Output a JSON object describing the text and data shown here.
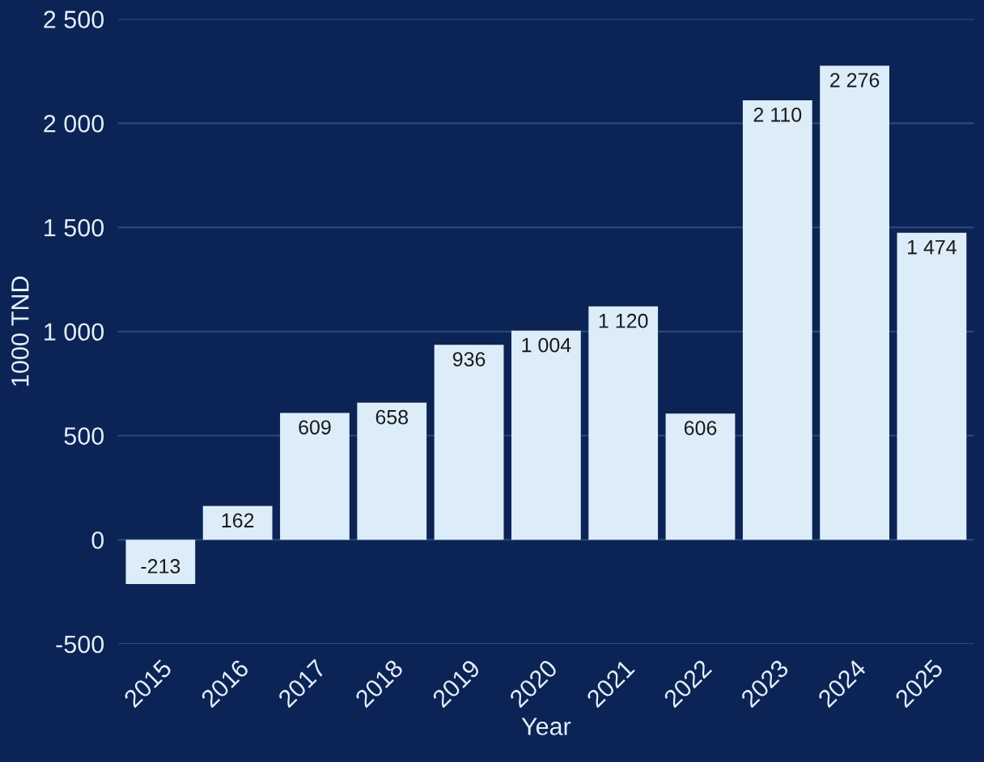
{
  "chart_data": {
    "type": "bar",
    "xlabel": "Year",
    "ylabel": "1000 TND",
    "categories": [
      "2015",
      "2016",
      "2017",
      "2018",
      "2019",
      "2020",
      "2021",
      "2022",
      "2023",
      "2024",
      "2025"
    ],
    "values": [
      -213,
      162,
      609,
      658,
      936,
      1004,
      1120,
      606,
      2110,
      2276,
      1474
    ],
    "value_labels": [
      "-213",
      "162",
      "609",
      "658",
      "936",
      "1 004",
      "1 120",
      "606",
      "2 110",
      "2 276",
      "1 474"
    ],
    "color": "#dcedf9",
    "ylim": [
      -500,
      2500
    ],
    "yticks": [
      {
        "value": -500,
        "label": "-500"
      },
      0,
      500,
      {
        "value": 1000,
        "label": "1 000"
      },
      {
        "value": 1500,
        "label": "1 500"
      },
      {
        "value": 2000,
        "label": "2 000"
      },
      {
        "value": 2500,
        "label": "2 500"
      }
    ],
    "grid": "y"
  }
}
